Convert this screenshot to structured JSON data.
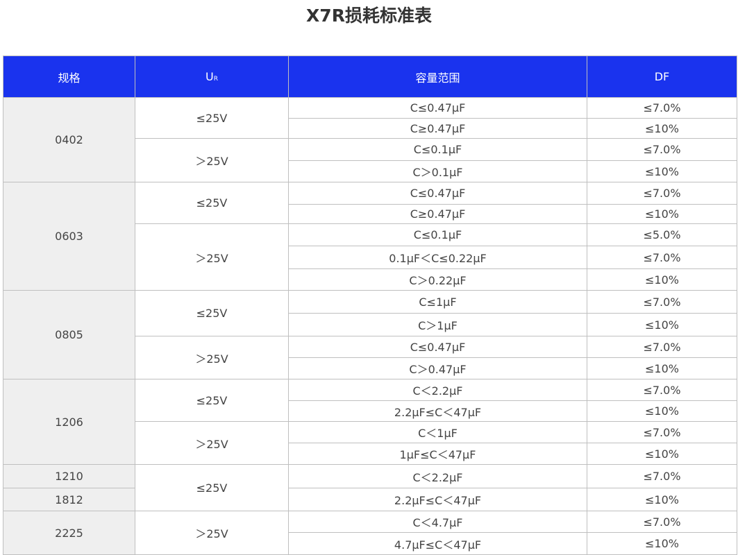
{
  "title": "X7R损耗标准表",
  "colors": {
    "header_bg": "#1a33ee",
    "size_cell_bg": "#efefef",
    "border": "#bfbfbf"
  },
  "headers": {
    "size": "规格",
    "ur_main": "U",
    "ur_sub": "R",
    "capacitance": "容量范围",
    "df": "DF"
  },
  "groups": [
    {
      "sizes": [
        "0402"
      ],
      "voltages": [
        {
          "ur": "≤25V",
          "rows": [
            {
              "cap": "C≤0.47μF",
              "df": "≤7.0%"
            },
            {
              "cap": "C≥0.47μF",
              "df": "≤10%"
            }
          ]
        },
        {
          "ur": "＞25V",
          "rows": [
            {
              "cap": "C≤0.1μF",
              "df": "≤7.0%"
            },
            {
              "cap": "C＞0.1μF",
              "df": "≤10%"
            }
          ]
        }
      ]
    },
    {
      "sizes": [
        "0603"
      ],
      "voltages": [
        {
          "ur": "≤25V",
          "rows": [
            {
              "cap": "C≤0.47μF",
              "df": "≤7.0%"
            },
            {
              "cap": "C≥0.47μF",
              "df": "≤10%"
            }
          ]
        },
        {
          "ur": "＞25V",
          "rows": [
            {
              "cap": "C≤0.1μF",
              "df": "≤5.0%"
            },
            {
              "cap": "0.1μF＜C≤0.22μF",
              "df": "≤7.0%"
            },
            {
              "cap": "C＞0.22μF",
              "df": "≤10%"
            }
          ]
        }
      ]
    },
    {
      "sizes": [
        "0805"
      ],
      "voltages": [
        {
          "ur": "≤25V",
          "rows": [
            {
              "cap": "C≤1μF",
              "df": "≤7.0%"
            },
            {
              "cap": "C＞1μF",
              "df": "≤10%"
            }
          ]
        },
        {
          "ur": "＞25V",
          "rows": [
            {
              "cap": "C≤0.47μF",
              "df": "≤7.0%"
            },
            {
              "cap": "C＞0.47μF",
              "df": "≤10%"
            }
          ]
        }
      ]
    },
    {
      "sizes": [
        "1206"
      ],
      "voltages": [
        {
          "ur": "≤25V",
          "rows": [
            {
              "cap": "C＜2.2μF",
              "df": "≤7.0%"
            },
            {
              "cap": "2.2μF≤C＜47μF",
              "df": "≤10%"
            }
          ]
        },
        {
          "ur": "＞25V",
          "rows": [
            {
              "cap": "C＜1μF",
              "df": "≤7.0%"
            },
            {
              "cap": "1μF≤C＜47μF",
              "df": "≤10%"
            }
          ]
        }
      ]
    },
    {
      "sizes": [
        "1210",
        "1812"
      ],
      "voltages": [
        {
          "ur": "≤25V",
          "rows": [
            {
              "cap": "C＜2.2μF",
              "df": "≤7.0%"
            },
            {
              "cap": "2.2μF≤C＜47μF",
              "df": "≤10%"
            }
          ]
        }
      ]
    },
    {
      "sizes": [
        "2225"
      ],
      "voltages": [
        {
          "ur": "＞25V",
          "rows": [
            {
              "cap": "C＜4.7μF",
              "df": "≤7.0%"
            },
            {
              "cap": "4.7μF≤C＜47μF",
              "df": "≤10%"
            }
          ]
        }
      ]
    }
  ]
}
